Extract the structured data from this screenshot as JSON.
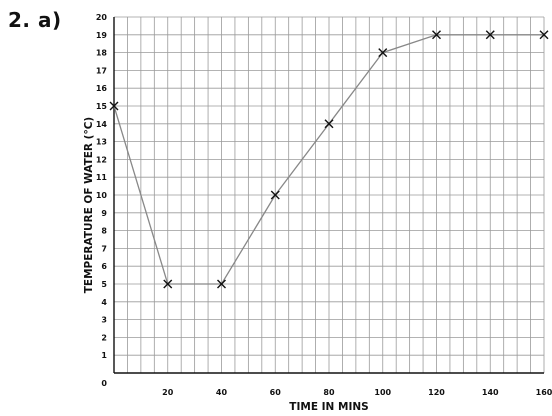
{
  "question_label": "2. a)",
  "chart_data": {
    "type": "line",
    "title": "",
    "xlabel": "TIME IN MINS",
    "ylabel": "TEMPERATURE OF WATER  (°C)",
    "xlim": [
      0,
      160
    ],
    "ylim": [
      0,
      20
    ],
    "x_ticks": [
      0,
      20,
      40,
      60,
      80,
      100,
      120,
      140,
      160
    ],
    "y_ticks": [
      1,
      2,
      3,
      4,
      5,
      6,
      7,
      8,
      9,
      10,
      11,
      12,
      13,
      14,
      15,
      16,
      17,
      18,
      19,
      20
    ],
    "origin_label": "0",
    "grid": true,
    "marker": "x",
    "line_color": "#888888",
    "marker_color": "#111111",
    "grid_color": "#9a9a9a",
    "x": [
      0,
      20,
      40,
      60,
      80,
      100,
      120,
      140,
      160
    ],
    "y": [
      15,
      5,
      5,
      10,
      14,
      18,
      19,
      19,
      19
    ]
  }
}
